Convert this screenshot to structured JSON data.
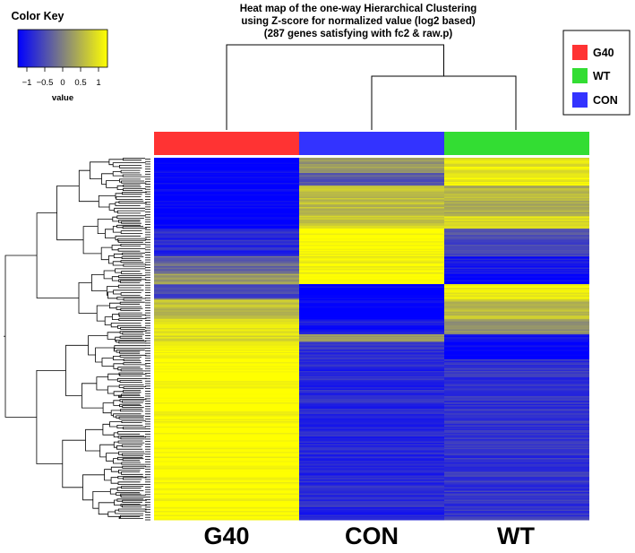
{
  "chart_data": {
    "type": "heatmap",
    "title": [
      "Heat map of the one-way Hierarchical Clustering",
      "using Z-score for normalized value (log2 based)",
      "(287 genes satisfying with fc2 & raw.p)"
    ],
    "columns": [
      "G40",
      "CON",
      "WT"
    ],
    "row_count": 287,
    "color_key": {
      "title": "Color Key",
      "label": "value",
      "ticks": [
        "−1",
        "−0.5",
        "0",
        "0.5",
        "1"
      ],
      "tick_values": [
        -1,
        -0.5,
        0,
        0.5,
        1
      ],
      "range": [
        -1.25,
        1.25
      ],
      "low_color": "#0000ff",
      "mid_color": "#808080",
      "high_color": "#ffff00"
    },
    "groups": [
      {
        "name": "G40",
        "color": "#ff3333"
      },
      {
        "name": "WT",
        "color": "#33dd33"
      },
      {
        "name": "CON",
        "color": "#3333ff"
      }
    ],
    "column_group_colors": [
      "#ff3333",
      "#3333ff",
      "#33dd33"
    ],
    "row_blocks": [
      {
        "genes": 12,
        "G40": -1.0,
        "CON": 0.2,
        "WT": 0.8
      },
      {
        "genes": 10,
        "G40": -1.0,
        "CON": -0.3,
        "WT": 0.9
      },
      {
        "genes": 24,
        "G40": -1.0,
        "CON": 0.5,
        "WT": 0.4
      },
      {
        "genes": 10,
        "G40": -1.0,
        "CON": 0.6,
        "WT": 0.7
      },
      {
        "genes": 22,
        "G40": -0.7,
        "CON": 1.0,
        "WT": -0.4
      },
      {
        "genes": 14,
        "G40": -0.2,
        "CON": 0.9,
        "WT": -0.8
      },
      {
        "genes": 8,
        "G40": 0.2,
        "CON": 1.0,
        "WT": -1.0
      },
      {
        "genes": 12,
        "G40": -0.4,
        "CON": -1.0,
        "WT": 0.9
      },
      {
        "genes": 16,
        "G40": 0.5,
        "CON": -1.0,
        "WT": 0.5
      },
      {
        "genes": 12,
        "G40": 0.8,
        "CON": -0.8,
        "WT": 0.2
      },
      {
        "genes": 6,
        "G40": 0.7,
        "CON": 0.2,
        "WT": -0.9
      },
      {
        "genes": 14,
        "G40": 1.0,
        "CON": -0.6,
        "WT": -1.0
      },
      {
        "genes": 127,
        "G40": 1.0,
        "CON": -0.7,
        "WT": -0.6
      }
    ]
  }
}
